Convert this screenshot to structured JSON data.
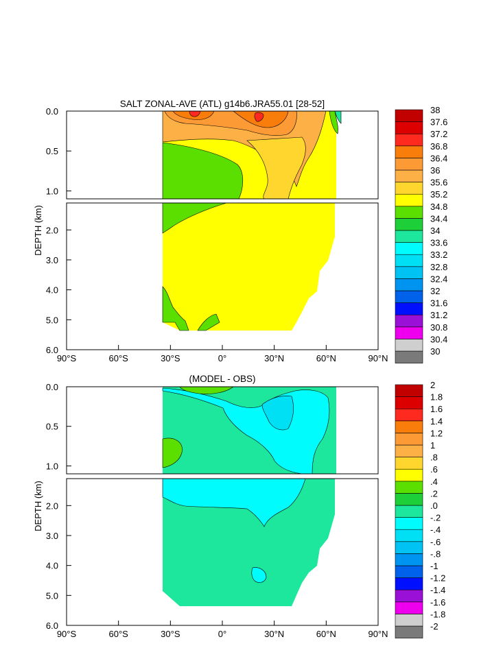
{
  "chart_data": [
    {
      "type": "heatmap",
      "title": "SALT ZONAL-AVE (ATL) g14b6.JRA55.01 [28-52]",
      "ylabel": "DEPTH (km)",
      "xlim": [
        -90,
        90
      ],
      "x_ticks": [
        -90,
        -60,
        -30,
        0,
        30,
        60,
        90
      ],
      "x_tick_labels": [
        "90°S",
        "60°S",
        "30°S",
        "0°",
        "30°N",
        "60°N",
        "90°N"
      ],
      "y_upper_ticks": [
        0.0,
        0.5,
        1.0
      ],
      "y_upper_tick_labels": [
        "0.0",
        "0.5",
        "1.0"
      ],
      "y_lower_ticks": [
        1.0,
        2.0,
        3.0,
        4.0,
        5.0,
        6.0
      ],
      "y_lower_tick_labels": [
        "",
        "2.0",
        "3.0",
        "4.0",
        "5.0",
        "6.0"
      ],
      "colorbar_labels": [
        "38",
        "37.6",
        "37.2",
        "36.8",
        "36.4",
        "36",
        "35.6",
        "35.2",
        "34.8",
        "34.4",
        "34",
        "33.6",
        "33.2",
        "32.8",
        "32.4",
        "32",
        "31.6",
        "31.2",
        "30.8",
        "30.4",
        "30"
      ],
      "colorbar_colors": [
        "#c10000",
        "#dc0000",
        "#ff2a1f",
        "#f97d0a",
        "#fc9a36",
        "#fdb045",
        "#ffd62e",
        "#ffff00",
        "#5bdf00",
        "#1dd03a",
        "#1de69d",
        "#00fcfc",
        "#00e0f4",
        "#00c3f4",
        "#0094f1",
        "#0062ea",
        "#0010ff",
        "#9a10d6",
        "#ee00ef",
        "#cfcfcf",
        "#7a7a7a"
      ],
      "field": {
        "base_color": "#ffff00",
        "regions": [
          {
            "name": "upper-high-salinity",
            "color": "#fdb045",
            "value": "35.6-36"
          },
          {
            "name": "upper-max-core",
            "color": "#f97d0a",
            "value": "36.4-36.8"
          },
          {
            "name": "upper-peak",
            "color": "#ff2a1f",
            "value": "37.2"
          },
          {
            "name": "south-fresh-intermediate",
            "color": "#5bdf00",
            "value": "34.4-34.8"
          },
          {
            "name": "arctic-fresh",
            "color": "#1de69d",
            "value": "34"
          }
        ]
      }
    },
    {
      "type": "heatmap",
      "title": "(MODEL - OBS)",
      "ylabel": "DEPTH (km)",
      "xlim": [
        -90,
        90
      ],
      "x_ticks": [
        -90,
        -60,
        -30,
        0,
        30,
        60,
        90
      ],
      "x_tick_labels": [
        "90°S",
        "60°S",
        "30°S",
        "0°",
        "30°N",
        "60°N",
        "90°N"
      ],
      "y_upper_ticks": [
        0.0,
        0.5,
        1.0
      ],
      "y_upper_tick_labels": [
        "0.0",
        "0.5",
        "1.0"
      ],
      "y_lower_ticks": [
        1.0,
        2.0,
        3.0,
        4.0,
        5.0,
        6.0
      ],
      "y_lower_tick_labels": [
        "",
        "2.0",
        "3.0",
        "4.0",
        "5.0",
        "6.0"
      ],
      "colorbar_labels": [
        "2",
        "1.8",
        "1.6",
        "1.4",
        "1.2",
        "1",
        ".8",
        ".6",
        ".4",
        ".2",
        ".0",
        "-.2",
        "-.4",
        "-.6",
        "-.8",
        "-1",
        "-1.2",
        "-1.4",
        "-1.6",
        "-1.8",
        "-2"
      ],
      "colorbar_colors": [
        "#c10000",
        "#dc0000",
        "#ff2a1f",
        "#f97d0a",
        "#fc9a36",
        "#fdb045",
        "#ffd62e",
        "#ffff00",
        "#5bdf00",
        "#1dd03a",
        "#1de69d",
        "#00fcfc",
        "#00e0f4",
        "#00c3f4",
        "#0094f1",
        "#0062ea",
        "#0010ff",
        "#9a10d6",
        "#ee00ef",
        "#cfcfcf",
        "#7a7a7a"
      ],
      "field": {
        "base_color": "#1de69d",
        "regions": [
          {
            "name": "negative-bias-upper",
            "color": "#00fcfc",
            "value": "-0.2"
          },
          {
            "name": "negative-bias-deep",
            "color": "#00e0f4",
            "value": "-0.4"
          },
          {
            "name": "positive-bias-south",
            "color": "#5bdf00",
            "value": "0.2-0.4"
          }
        ]
      }
    }
  ]
}
